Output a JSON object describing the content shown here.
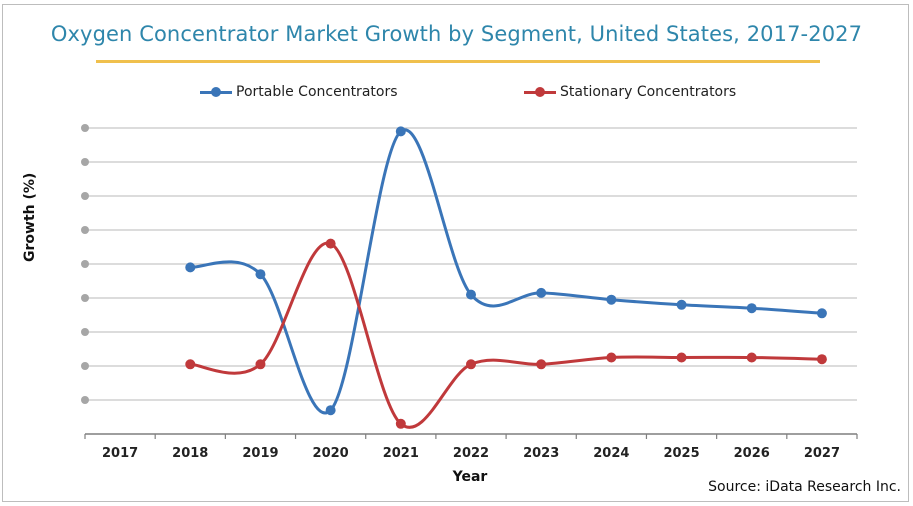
{
  "chart_data": {
    "type": "line",
    "title": "Oxygen Concentrator Market Growth by Segment, United States, 2017-2027",
    "xlabel": "Year",
    "ylabel": "Growth (%)",
    "categories": [
      "2017",
      "2018",
      "2019",
      "2020",
      "2021",
      "2022",
      "2023",
      "2024",
      "2025",
      "2026",
      "2027"
    ],
    "y_tick_labels_visible": false,
    "y_units": "gridline steps above x-axis (y-axis values not labeled)",
    "ylim": [
      0,
      9
    ],
    "y_gridlines": [
      1,
      2,
      3,
      4,
      5,
      6,
      7,
      8,
      9
    ],
    "grid": true,
    "smooth": true,
    "legend_position": "top",
    "series": [
      {
        "name": "Portable Concentrators",
        "color": "#3a75b8",
        "values": [
          null,
          4.9,
          4.7,
          0.7,
          8.9,
          4.1,
          4.15,
          3.95,
          3.8,
          3.7,
          3.55
        ]
      },
      {
        "name": "Stationary Concentrators",
        "color": "#c0393b",
        "values": [
          null,
          2.05,
          2.05,
          5.6,
          0.3,
          2.05,
          2.05,
          2.25,
          2.25,
          2.25,
          2.2
        ]
      }
    ],
    "source": "Source: iData Research Inc."
  },
  "colors": {
    "title": "#2e86ab",
    "underline": "#f0c04d",
    "grid": "#c8c8c8",
    "y_dot": "#a6a6a6",
    "axis": "#7f7f7f"
  }
}
